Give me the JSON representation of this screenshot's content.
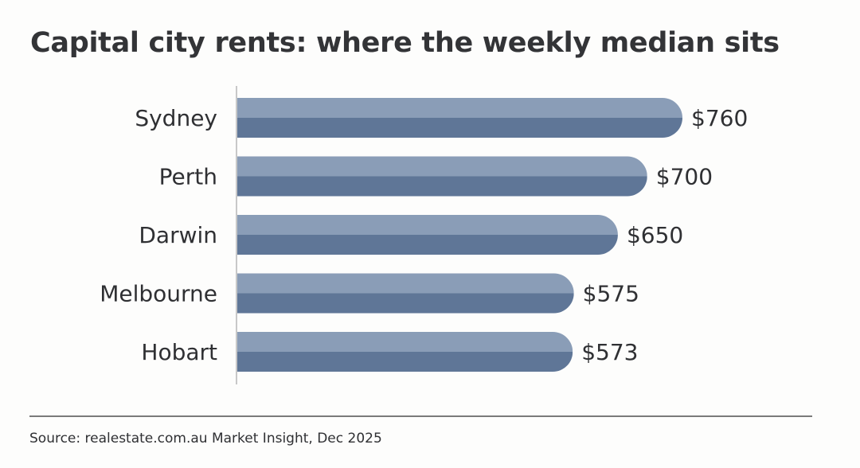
{
  "chart_data": {
    "type": "bar",
    "orientation": "horizontal",
    "title": "Capital city rents: where the weekly median sits",
    "categories": [
      "Sydney",
      "Perth",
      "Darwin",
      "Melbourne",
      "Hobart"
    ],
    "values": [
      760,
      700,
      650,
      575,
      573
    ],
    "value_labels": [
      "$760",
      "$700",
      "$650",
      "$575",
      "$573"
    ],
    "xlabel": "",
    "ylabel": "",
    "xlim": [
      0,
      760
    ],
    "grid": false,
    "colors": {
      "bar_top": "#8a9db7",
      "bar_bottom": "#5f7697",
      "axis": "#c8c8c8"
    }
  },
  "footer": {
    "source": "Source: realestate.com.au Market Insight, Dec 2025"
  }
}
